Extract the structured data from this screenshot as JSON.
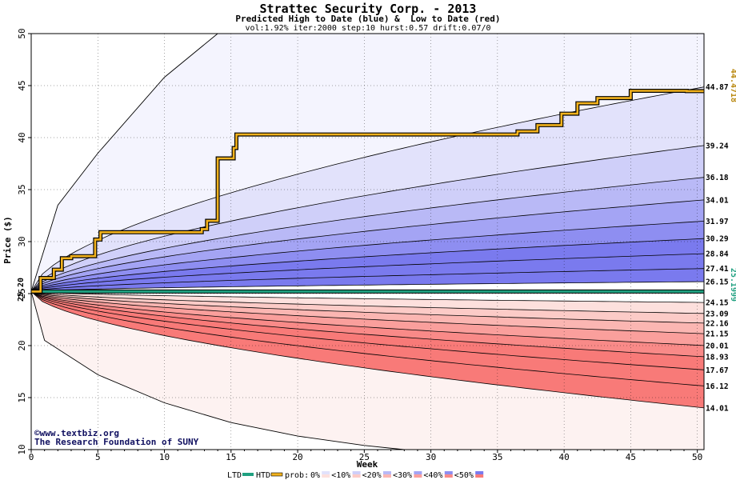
{
  "chart_data": {
    "type": "area",
    "title": "Strattec Security Corp. - 2013",
    "subtitle": "Predicted High to Date (blue) &  Low to Date (red)",
    "params": "vol:1.92% iter:2000 step:10 hurst:0.57 drift:0.07/0",
    "xlabel": "Week",
    "ylabel": "Price ($)",
    "xlim": [
      0,
      50.5
    ],
    "ylim": [
      10,
      50
    ],
    "x_ticks": [
      0,
      5,
      10,
      15,
      20,
      25,
      30,
      35,
      40,
      45,
      50
    ],
    "y_ticks": [
      10,
      15,
      20,
      25,
      30,
      35,
      40,
      45,
      50
    ],
    "start_value": "25.20",
    "ltd_value": "25.1999",
    "htd_value": "44.4718",
    "watermark_line1": "©www.textbiz.org",
    "watermark_line2": "The Research Foundation of SUNY",
    "upper_quantile_labels": [
      "44.87",
      "39.24",
      "36.18",
      "34.01",
      "31.97",
      "30.29",
      "28.84",
      "27.41",
      "26.15"
    ],
    "upper_quantile_values": [
      44.87,
      39.24,
      36.18,
      34.01,
      31.97,
      30.29,
      28.84,
      27.41,
      26.15
    ],
    "lower_quantile_labels": [
      "24.15",
      "23.09",
      "22.16",
      "21.15",
      "20.01",
      "18.93",
      "17.67",
      "16.12",
      "14.01"
    ],
    "lower_quantile_values": [
      24.15,
      23.09,
      22.16,
      21.15,
      20.01,
      18.93,
      17.67,
      16.12,
      14.01
    ],
    "upper_extreme": {
      "x": [
        0,
        2,
        5,
        10,
        14
      ],
      "y": [
        25.2,
        33.5,
        38.5,
        45.8,
        50
      ]
    },
    "lower_extreme": {
      "x": [
        0,
        1,
        5,
        10,
        15,
        20,
        25,
        28
      ],
      "y": [
        25.2,
        20.5,
        17.2,
        14.5,
        12.6,
        11.3,
        10.4,
        10
      ]
    },
    "htd_series": {
      "x": [
        0,
        0.7,
        0.7,
        1.7,
        1.7,
        2.3,
        2.3,
        3,
        3,
        4.8,
        4.8,
        5.2,
        5.2,
        12.8,
        12.8,
        13.2,
        13.2,
        14,
        14,
        15.2,
        15.2,
        15.4,
        15.4,
        36.5,
        36.5,
        38,
        38,
        39.8,
        39.8,
        41,
        41,
        42.5,
        42.5,
        45,
        45,
        49.2,
        49.2,
        50.5
      ],
      "y": [
        25.2,
        25.2,
        26.5,
        26.5,
        27.3,
        27.3,
        28.4,
        28.4,
        28.6,
        28.6,
        30.2,
        30.2,
        30.9,
        30.9,
        31.2,
        31.2,
        32.0,
        32.0,
        38.0,
        38.0,
        39.0,
        39.0,
        40.3,
        40.3,
        40.6,
        40.6,
        41.2,
        41.2,
        42.3,
        42.3,
        43.3,
        43.3,
        43.8,
        43.8,
        44.5,
        44.5,
        44.47,
        44.47
      ]
    },
    "ltd_series": {
      "x": [
        0,
        50.5
      ],
      "y": [
        25.2,
        25.2
      ]
    },
    "legend": {
      "ltd": "LTD",
      "htd": "HTD",
      "prob": "prob:",
      "entries": [
        "0%",
        "<10%",
        "<20%",
        "<30%",
        "<40%",
        "<50%"
      ]
    },
    "colors": {
      "upper_bands": [
        "#f4f4fe",
        "#e2e2fb",
        "#cfcff9",
        "#b9b9f6",
        "#a4a4f4",
        "#8e8ef1",
        "#7a7aee"
      ],
      "lower_bands": [
        "#fdf2f1",
        "#fde0dd",
        "#fccbc7",
        "#fbb6b2",
        "#fa9f9c",
        "#f98a88",
        "#f87a78"
      ],
      "ltd_line": "#1fa080",
      "htd_line": "#f2b21d",
      "grid": "#000000"
    }
  }
}
